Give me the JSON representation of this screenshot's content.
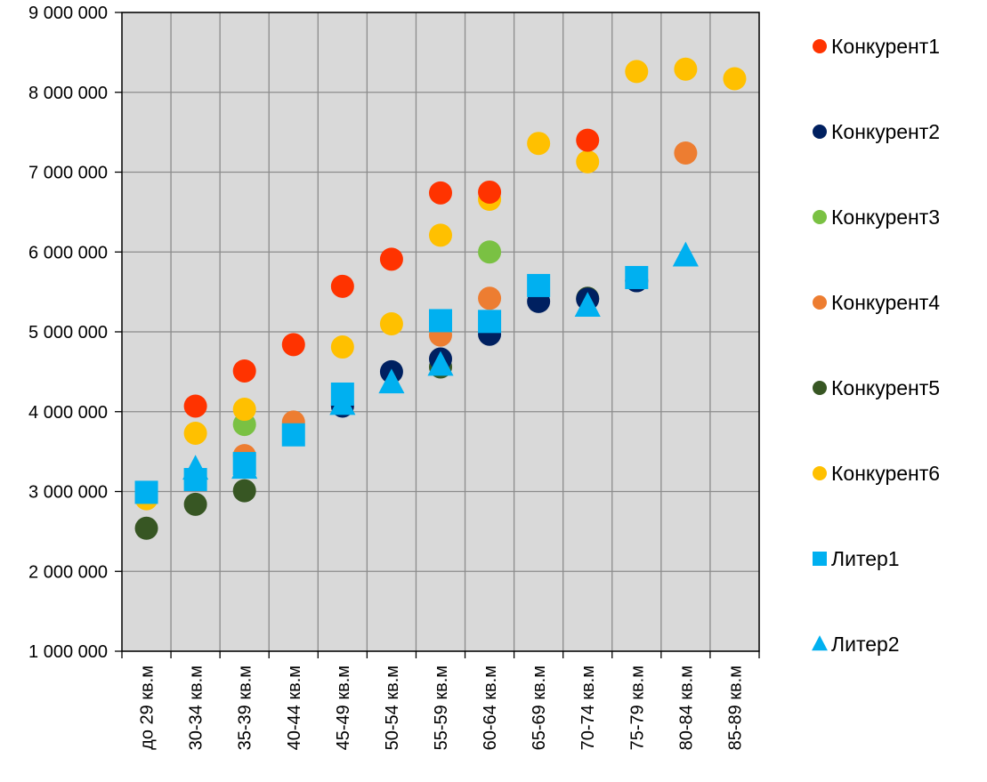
{
  "chart_data": {
    "type": "scatter",
    "categories": [
      "до 29 кв.м",
      "30-34 кв.м",
      "35-39 кв.м",
      "40-44 кв.м",
      "45-49 кв.м",
      "50-54 кв.м",
      "55-59 кв.м",
      "60-64 кв.м",
      "65-69 кв.м",
      "70-74 кв.м",
      "75-79 кв.м",
      "80-84 кв.м",
      "85-89 кв.м"
    ],
    "ylim": [
      1000000,
      9000000
    ],
    "y_ticks": [
      1000000,
      2000000,
      3000000,
      4000000,
      5000000,
      6000000,
      7000000,
      8000000,
      9000000
    ],
    "y_tick_labels": [
      "1 000 000",
      "2 000 000",
      "3 000 000",
      "4 000 000",
      "5 000 000",
      "6 000 000",
      "7 000 000",
      "8 000 000",
      "9 000 000"
    ],
    "grid": true,
    "plot_background": "#d9d9d9",
    "legend_position": "right",
    "series": [
      {
        "name": "Конкурент5",
        "color": "#375623",
        "marker": "circle",
        "values": [
          2540000,
          2840000,
          3010000,
          null,
          null,
          null,
          4560000,
          null,
          null,
          5420000,
          null,
          null,
          null
        ]
      },
      {
        "name": "Конкурент2",
        "color": "#002060",
        "marker": "circle",
        "values": [
          null,
          null,
          null,
          null,
          4070000,
          4500000,
          4660000,
          4970000,
          5380000,
          5410000,
          5640000,
          null,
          null
        ]
      },
      {
        "name": "Конкурент4",
        "color": "#ed7d31",
        "marker": "circle",
        "values": [
          null,
          null,
          3450000,
          3870000,
          null,
          null,
          4960000,
          5420000,
          null,
          null,
          null,
          7240000,
          null
        ]
      },
      {
        "name": "Конкурент3",
        "color": "#7ac143",
        "marker": "circle",
        "values": [
          null,
          null,
          3840000,
          null,
          null,
          null,
          null,
          6000000,
          null,
          null,
          null,
          null,
          null
        ]
      },
      {
        "name": "Конкурент6",
        "color": "#ffc000",
        "marker": "circle",
        "values": [
          2910000,
          3730000,
          4030000,
          null,
          4810000,
          5100000,
          6210000,
          6660000,
          7360000,
          7130000,
          8260000,
          8290000,
          8170000
        ]
      },
      {
        "name": "Конкурент1",
        "color": "#ff3300",
        "marker": "circle",
        "values": [
          null,
          4070000,
          4510000,
          4840000,
          5570000,
          5910000,
          6740000,
          6750000,
          null,
          7400000,
          null,
          null,
          null
        ]
      },
      {
        "name": "Литер1",
        "color": "#00b0f0",
        "marker": "square",
        "values": [
          2990000,
          3150000,
          3350000,
          3710000,
          4220000,
          null,
          5140000,
          5130000,
          5580000,
          null,
          5680000,
          null,
          null
        ]
      },
      {
        "name": "Литер2",
        "color": "#00b0f0",
        "marker": "triangle",
        "values": [
          null,
          3280000,
          3290000,
          null,
          4090000,
          4360000,
          4580000,
          null,
          null,
          5320000,
          null,
          5950000,
          null
        ]
      }
    ],
    "legend_order": [
      "Конкурент1",
      "Конкурент2",
      "Конкурент3",
      "Конкурент4",
      "Конкурент5",
      "Конкурент6",
      "Литер1",
      "Литер2"
    ]
  }
}
